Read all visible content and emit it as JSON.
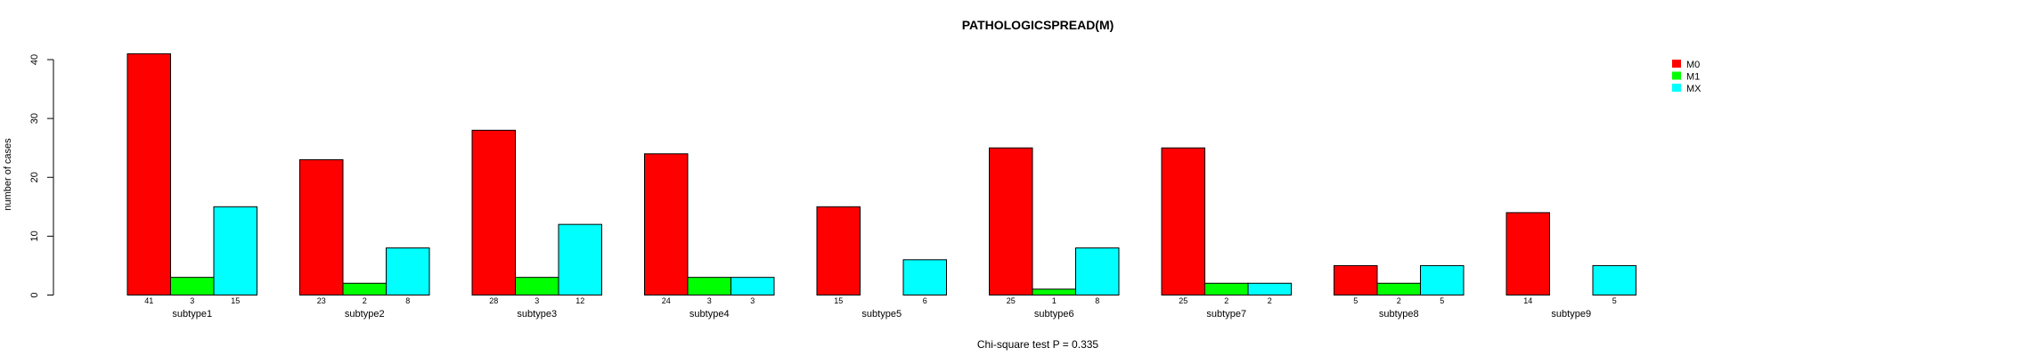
{
  "chart_data": {
    "type": "bar",
    "title": "PATHOLOGICSPREAD(M)",
    "xlabel": "",
    "ylabel": "number of cases",
    "ylim": [
      0,
      42
    ],
    "yticks": [
      0,
      10,
      20,
      30,
      40
    ],
    "categories": [
      "subtype1",
      "subtype2",
      "subtype3",
      "subtype4",
      "subtype5",
      "subtype6",
      "subtype7",
      "subtype8",
      "subtype9"
    ],
    "series": [
      {
        "name": "M0",
        "color": "#ff0000",
        "values": [
          41,
          23,
          28,
          24,
          15,
          25,
          25,
          5,
          14
        ]
      },
      {
        "name": "M1",
        "color": "#00ff00",
        "values": [
          3,
          2,
          3,
          3,
          0,
          1,
          2,
          2,
          0
        ]
      },
      {
        "name": "MX",
        "color": "#00ffff",
        "values": [
          15,
          8,
          12,
          3,
          6,
          8,
          2,
          5,
          5
        ]
      }
    ],
    "value_labels": [
      [
        "41",
        "3",
        "15"
      ],
      [
        "23",
        "2",
        "8"
      ],
      [
        "28",
        "3",
        "12"
      ],
      [
        "24",
        "3",
        "3"
      ],
      [
        "15",
        "",
        "6"
      ],
      [
        "25",
        "1",
        "8"
      ],
      [
        "25",
        "2",
        "2"
      ],
      [
        "5",
        "2",
        "5"
      ],
      [
        "14",
        "",
        "5"
      ]
    ],
    "legend_position": "top-right",
    "grid": false,
    "footer": "Chi-square test P = 0.335"
  }
}
